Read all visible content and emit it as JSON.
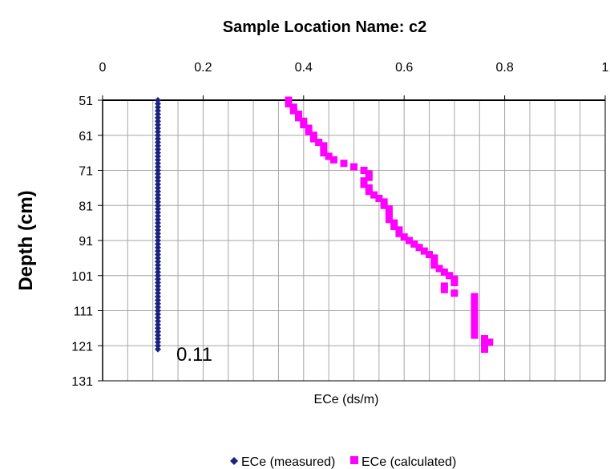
{
  "chart_data": {
    "type": "scatter",
    "title": "Sample Location Name: c2",
    "xlabel": "ECe (ds/m)",
    "ylabel": "Depth (cm)",
    "xlim": [
      0,
      1
    ],
    "ylim": [
      51,
      131
    ],
    "y_inverted": true,
    "x_axis_position": "top",
    "x_ticks": [
      "0",
      "0.2",
      "0.4",
      "0.6",
      "0.8",
      "1"
    ],
    "y_ticks": [
      "51",
      "61",
      "71",
      "81",
      "91",
      "101",
      "111",
      "121",
      "131"
    ],
    "grid": true,
    "legend_position": "bottom",
    "annotations": [
      {
        "text": "0.11",
        "x": 0.15,
        "y": 122
      }
    ],
    "series": [
      {
        "name": "ECe (measured)",
        "color": "#1a237e",
        "marker": "diamond",
        "points": [
          [
            0.11,
            51
          ],
          [
            0.11,
            52
          ],
          [
            0.11,
            53
          ],
          [
            0.11,
            54
          ],
          [
            0.11,
            55
          ],
          [
            0.11,
            56
          ],
          [
            0.11,
            57
          ],
          [
            0.11,
            58
          ],
          [
            0.11,
            59
          ],
          [
            0.11,
            60
          ],
          [
            0.11,
            61
          ],
          [
            0.11,
            62
          ],
          [
            0.11,
            63
          ],
          [
            0.11,
            64
          ],
          [
            0.11,
            65
          ],
          [
            0.11,
            66
          ],
          [
            0.11,
            67
          ],
          [
            0.11,
            68
          ],
          [
            0.11,
            69
          ],
          [
            0.11,
            70
          ],
          [
            0.11,
            71
          ],
          [
            0.11,
            72
          ],
          [
            0.11,
            73
          ],
          [
            0.11,
            74
          ],
          [
            0.11,
            75
          ],
          [
            0.11,
            76
          ],
          [
            0.11,
            77
          ],
          [
            0.11,
            78
          ],
          [
            0.11,
            79
          ],
          [
            0.11,
            80
          ],
          [
            0.11,
            81
          ],
          [
            0.11,
            82
          ],
          [
            0.11,
            83
          ],
          [
            0.11,
            84
          ],
          [
            0.11,
            85
          ],
          [
            0.11,
            86
          ],
          [
            0.11,
            87
          ],
          [
            0.11,
            88
          ],
          [
            0.11,
            89
          ],
          [
            0.11,
            90
          ],
          [
            0.11,
            91
          ],
          [
            0.11,
            92
          ],
          [
            0.11,
            93
          ],
          [
            0.11,
            94
          ],
          [
            0.11,
            95
          ],
          [
            0.11,
            96
          ],
          [
            0.11,
            97
          ],
          [
            0.11,
            98
          ],
          [
            0.11,
            99
          ],
          [
            0.11,
            100
          ],
          [
            0.11,
            101
          ],
          [
            0.11,
            102
          ],
          [
            0.11,
            103
          ],
          [
            0.11,
            104
          ],
          [
            0.11,
            105
          ],
          [
            0.11,
            106
          ],
          [
            0.11,
            107
          ],
          [
            0.11,
            108
          ],
          [
            0.11,
            109
          ],
          [
            0.11,
            110
          ],
          [
            0.11,
            111
          ],
          [
            0.11,
            112
          ],
          [
            0.11,
            113
          ],
          [
            0.11,
            114
          ],
          [
            0.11,
            115
          ],
          [
            0.11,
            116
          ],
          [
            0.11,
            117
          ],
          [
            0.11,
            118
          ],
          [
            0.11,
            119
          ],
          [
            0.11,
            120
          ],
          [
            0.11,
            121
          ],
          [
            0.11,
            122
          ]
        ]
      },
      {
        "name": "ECe (calculated)",
        "color": "#ff00ff",
        "marker": "square",
        "points": [
          [
            0.37,
            51
          ],
          [
            0.37,
            52
          ],
          [
            0.38,
            53
          ],
          [
            0.38,
            54
          ],
          [
            0.39,
            55
          ],
          [
            0.39,
            56
          ],
          [
            0.4,
            57
          ],
          [
            0.4,
            58
          ],
          [
            0.41,
            59
          ],
          [
            0.41,
            60
          ],
          [
            0.42,
            61
          ],
          [
            0.42,
            62
          ],
          [
            0.43,
            63
          ],
          [
            0.44,
            64
          ],
          [
            0.44,
            65
          ],
          [
            0.44,
            66
          ],
          [
            0.45,
            67
          ],
          [
            0.46,
            68
          ],
          [
            0.48,
            69
          ],
          [
            0.5,
            70
          ],
          [
            0.52,
            71
          ],
          [
            0.53,
            72
          ],
          [
            0.53,
            73
          ],
          [
            0.52,
            74
          ],
          [
            0.52,
            75
          ],
          [
            0.53,
            76
          ],
          [
            0.53,
            77
          ],
          [
            0.54,
            78
          ],
          [
            0.55,
            79
          ],
          [
            0.56,
            80
          ],
          [
            0.56,
            81
          ],
          [
            0.57,
            82
          ],
          [
            0.57,
            83
          ],
          [
            0.57,
            84
          ],
          [
            0.57,
            85
          ],
          [
            0.58,
            86
          ],
          [
            0.58,
            87
          ],
          [
            0.59,
            88
          ],
          [
            0.59,
            89
          ],
          [
            0.6,
            90
          ],
          [
            0.61,
            91
          ],
          [
            0.62,
            92
          ],
          [
            0.63,
            93
          ],
          [
            0.64,
            94
          ],
          [
            0.65,
            95
          ],
          [
            0.66,
            96
          ],
          [
            0.66,
            97
          ],
          [
            0.66,
            98
          ],
          [
            0.67,
            99
          ],
          [
            0.68,
            100
          ],
          [
            0.69,
            101
          ],
          [
            0.7,
            102
          ],
          [
            0.7,
            103
          ],
          [
            0.68,
            104
          ],
          [
            0.68,
            105
          ],
          [
            0.7,
            106
          ],
          [
            0.74,
            107
          ],
          [
            0.74,
            108
          ],
          [
            0.74,
            109
          ],
          [
            0.74,
            110
          ],
          [
            0.74,
            111
          ],
          [
            0.74,
            112
          ],
          [
            0.74,
            113
          ],
          [
            0.74,
            114
          ],
          [
            0.74,
            115
          ],
          [
            0.74,
            116
          ],
          [
            0.74,
            117
          ],
          [
            0.74,
            118
          ],
          [
            0.76,
            119
          ],
          [
            0.77,
            120
          ],
          [
            0.76,
            121
          ],
          [
            0.76,
            122
          ]
        ]
      }
    ]
  }
}
